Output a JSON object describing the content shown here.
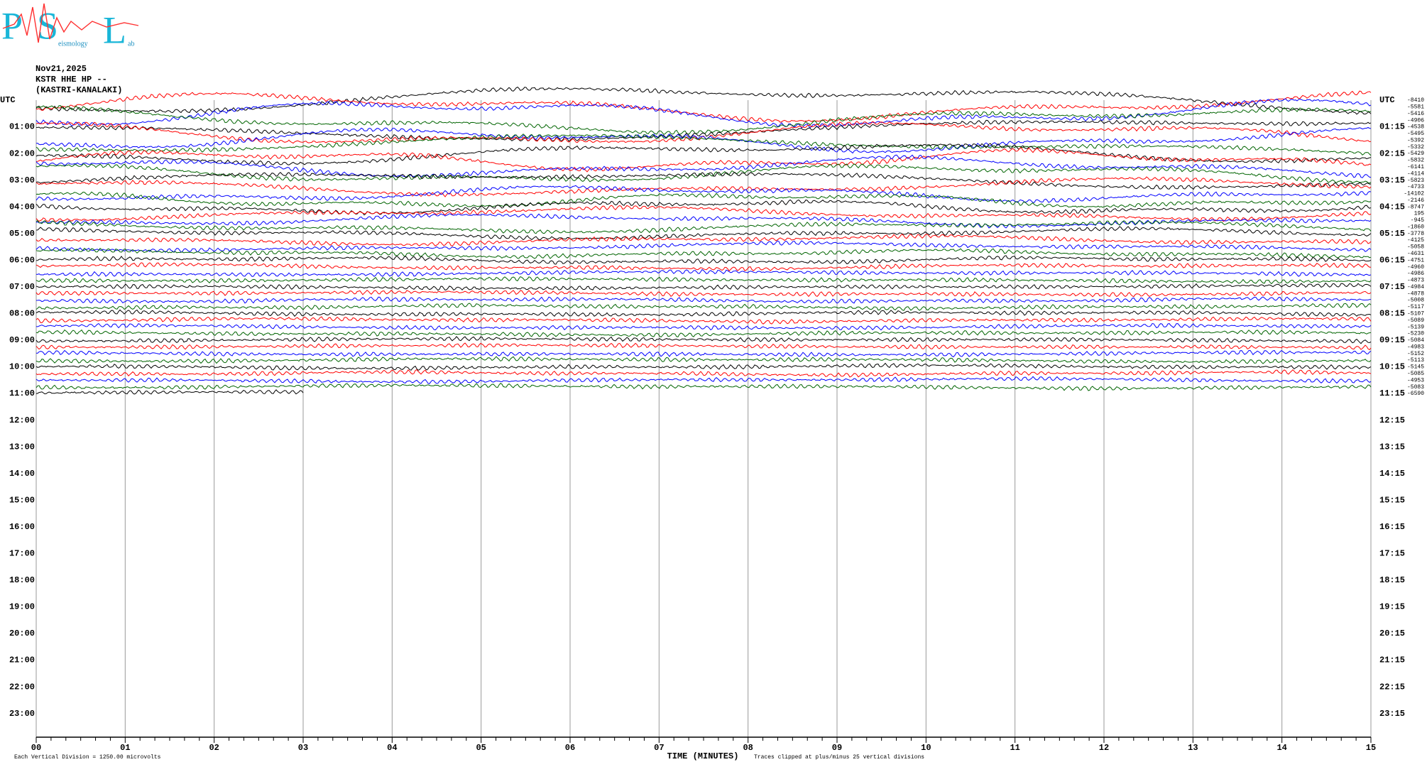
{
  "chart_data": {
    "type": "helicorder",
    "logo": [
      "P",
      "S",
      "L"
    ],
    "logo_words": [
      "eismology",
      "ab"
    ],
    "title": [
      "Nov21,2025",
      "KSTR HHE HP --",
      "(KASTRI-KANALAKI)"
    ],
    "left_labels": [
      "UTC",
      "01:00",
      "02:00",
      "03:00",
      "04:00",
      "05:00",
      "06:00",
      "07:00",
      "08:00",
      "09:00",
      "10:00",
      "11:00",
      "12:00",
      "13:00",
      "14:00",
      "15:00",
      "16:00",
      "17:00",
      "18:00",
      "19:00",
      "20:00",
      "21:00",
      "22:00",
      "23:00"
    ],
    "right_labels": [
      "UTC",
      "01:15",
      "02:15",
      "03:15",
      "04:15",
      "05:15",
      "06:15",
      "07:15",
      "08:15",
      "09:15",
      "10:15",
      "11:15",
      "12:15",
      "13:15",
      "14:15",
      "15:15",
      "16:15",
      "17:15",
      "18:15",
      "19:15",
      "20:15",
      "21:15",
      "22:15",
      "23:15"
    ],
    "offsets": [
      -8410,
      -5581,
      -5416,
      -4906,
      -4538,
      -5495,
      -5392,
      -5332,
      -5429,
      -5832,
      -6141,
      -4114,
      -5823,
      -4733,
      -14102,
      -2146,
      -8747,
      195,
      -945,
      -1860,
      -3778,
      -4125,
      -5058,
      -4631,
      -4751,
      -4960,
      -4986,
      -4873,
      -4984,
      -4878,
      -5008,
      -5117,
      -5107,
      -5089,
      -5139,
      -5230,
      -5084,
      -4983,
      -5152,
      -5113,
      -5145,
      -5085,
      -4953,
      -5083,
      -6590
    ],
    "colors": [
      "#000000",
      "#ff0000",
      "#0000ff",
      "#006400"
    ],
    "xlim": [
      0,
      15
    ],
    "xticks": [
      {
        "value": 0,
        "label": "00"
      },
      {
        "value": 1,
        "label": "01"
      },
      {
        "value": 2,
        "label": "02"
      },
      {
        "value": 3,
        "label": "03"
      },
      {
        "value": 4,
        "label": "04"
      },
      {
        "value": 5,
        "label": "05"
      },
      {
        "value": 6,
        "label": "06"
      },
      {
        "value": 7,
        "label": "07"
      },
      {
        "value": 8,
        "label": "08"
      },
      {
        "value": 9,
        "label": "09"
      },
      {
        "value": 10,
        "label": "10"
      },
      {
        "value": 11,
        "label": "11"
      },
      {
        "value": 12,
        "label": "12"
      },
      {
        "value": 13,
        "label": "13"
      },
      {
        "value": 14,
        "label": "14"
      },
      {
        "value": 15,
        "label": "15"
      }
    ],
    "xlabel": "TIME (MINUTES)",
    "footer_left": "Each Vertical Division = 1250.00 microvolts",
    "footer_right": "Traces clipped at plus/minus 25 vertical divisions",
    "grid": true
  }
}
